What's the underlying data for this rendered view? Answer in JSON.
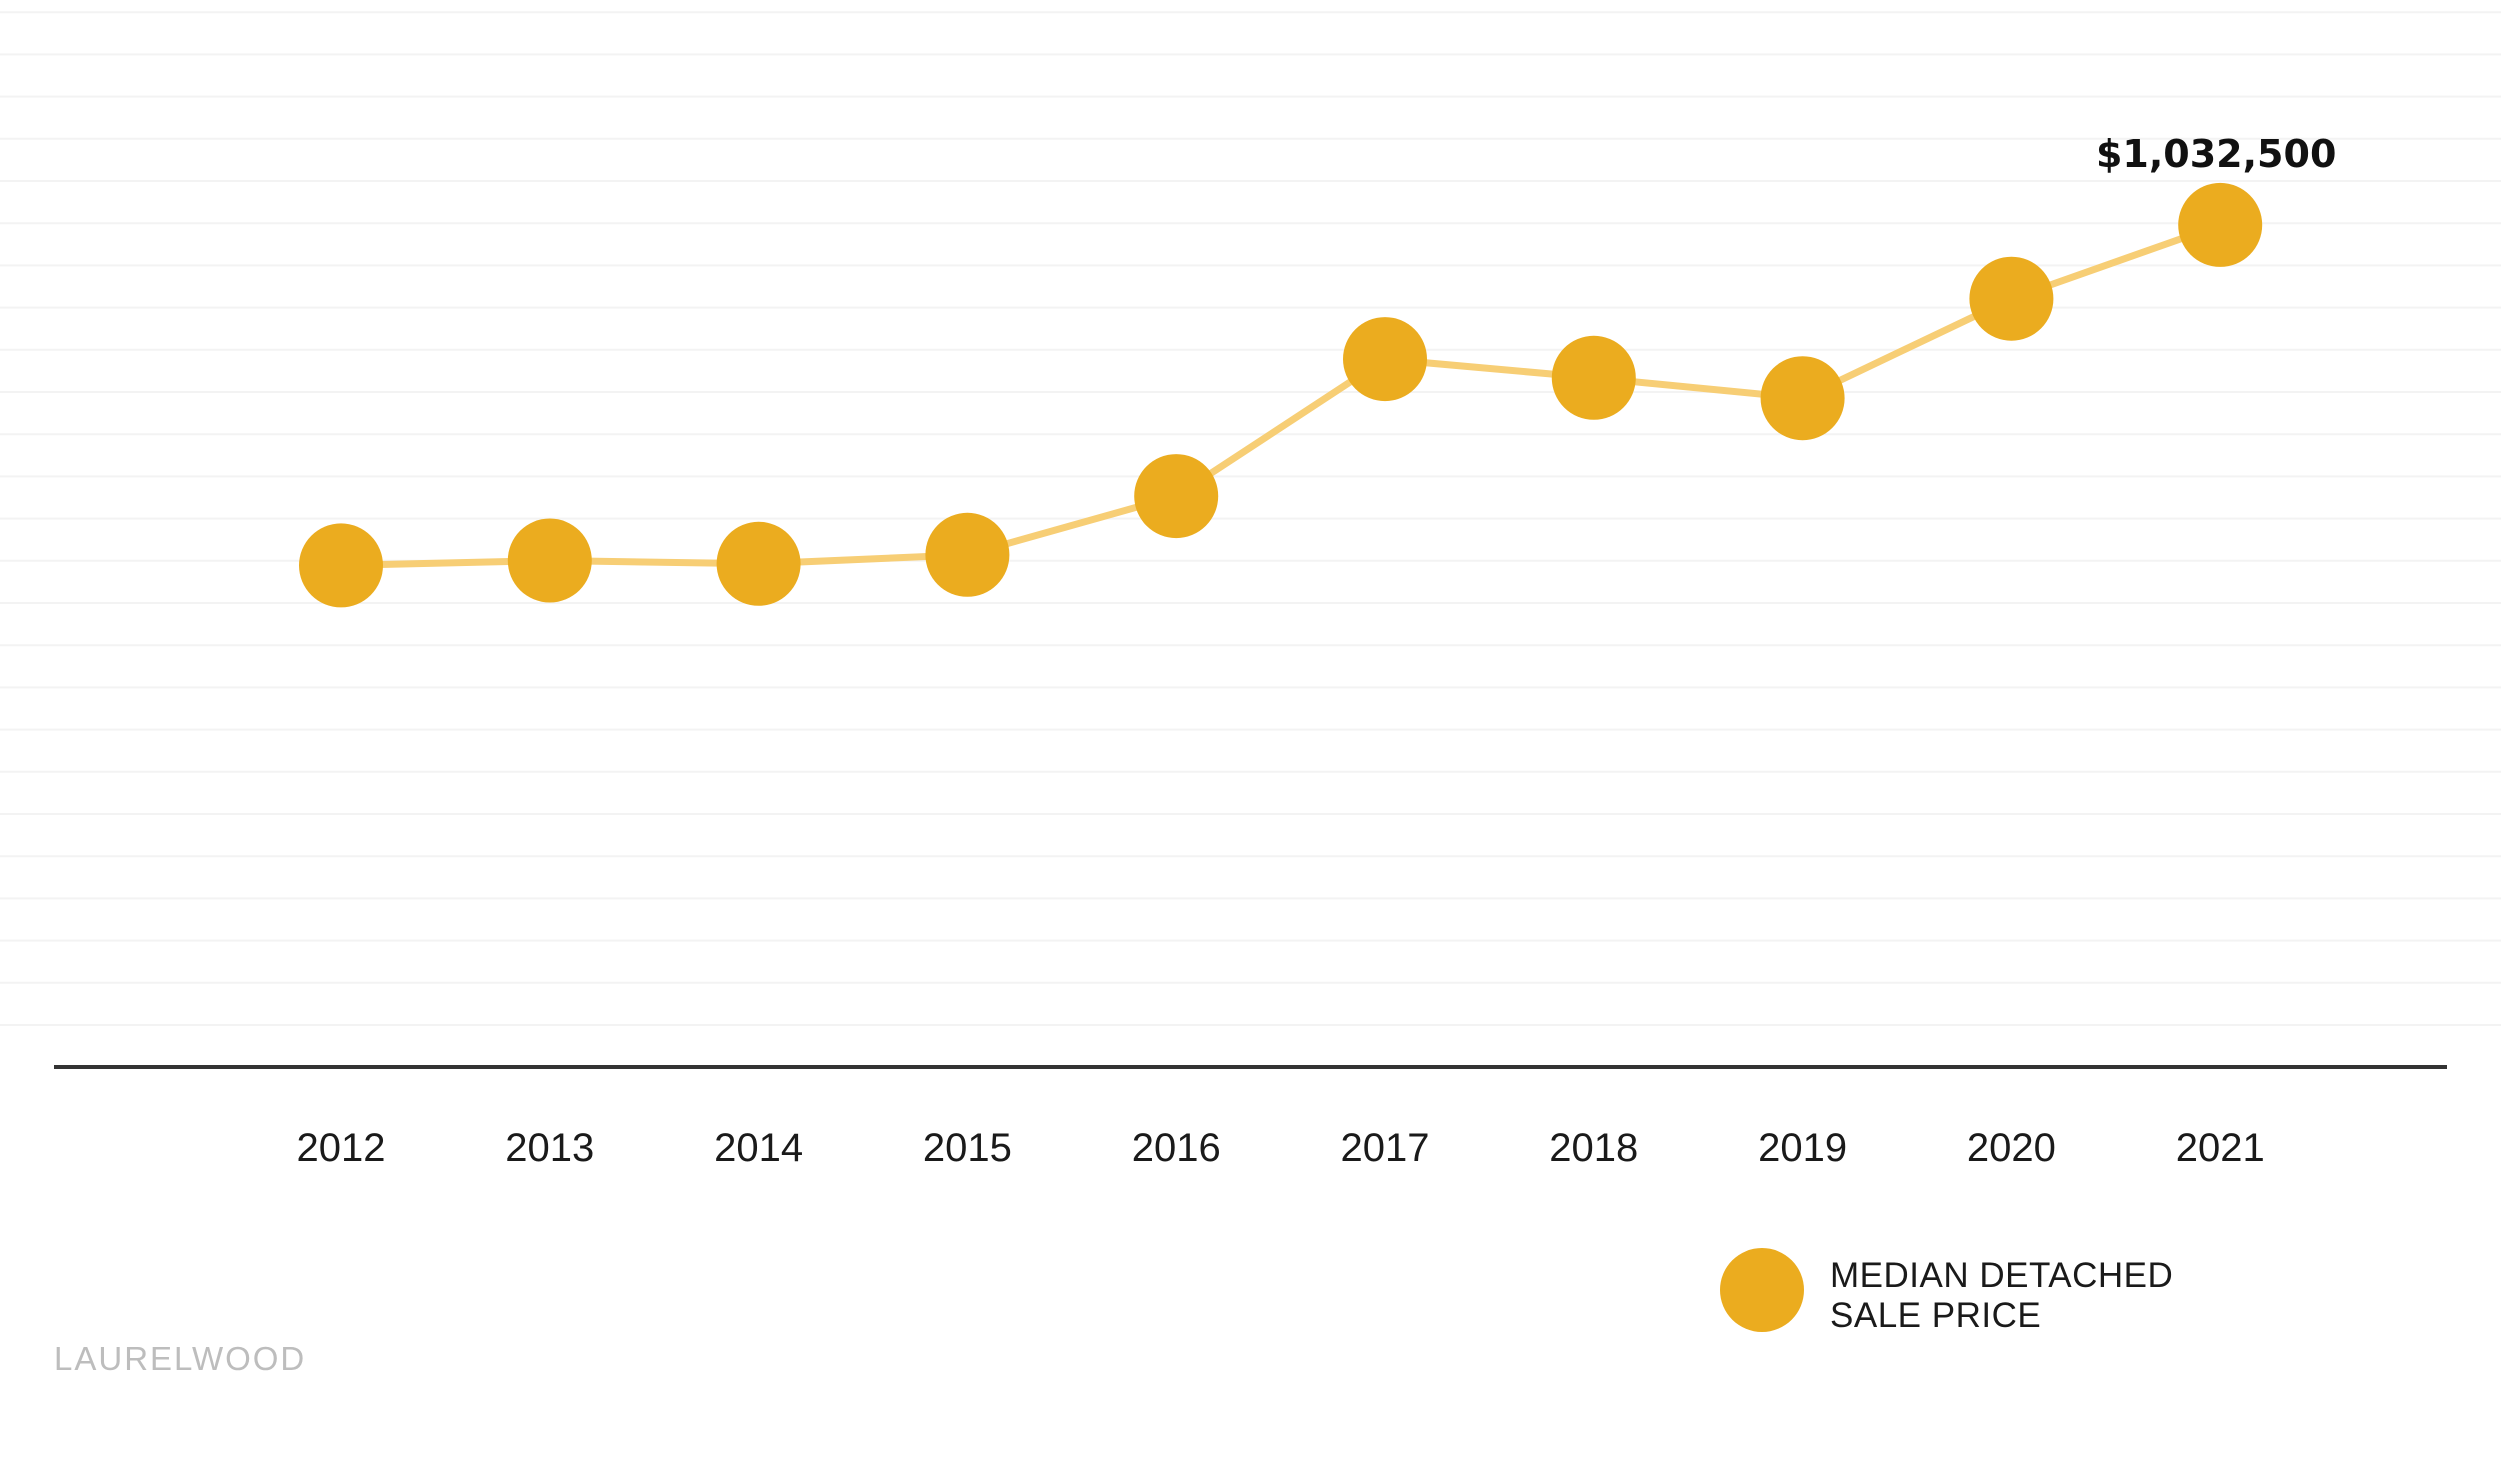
{
  "chart_data": {
    "type": "line",
    "x": [
      "2012",
      "2013",
      "2014",
      "2015",
      "2016",
      "2017",
      "2018",
      "2019",
      "2020",
      "2021"
    ],
    "series": [
      {
        "name": "MEDIAN DETACHED SALE PRICE",
        "values": [
          615000,
          621000,
          617000,
          628000,
          700000,
          868000,
          845000,
          820000,
          942000,
          1032500
        ]
      }
    ],
    "ylim": [
      0,
      1220000
    ],
    "grid": true,
    "legend": "bottom-right",
    "callout": {
      "label": "$1,032,500",
      "index": 9
    },
    "colors": {
      "marker": "#EBAC1F",
      "line": "#F7CE75",
      "axis": "#333333",
      "grid": "#F3F3F3"
    }
  },
  "legend": {
    "line1": "MEDIAN DETACHED",
    "line2": "SALE PRICE"
  },
  "brand": {
    "name": "LAURELWOOD"
  }
}
